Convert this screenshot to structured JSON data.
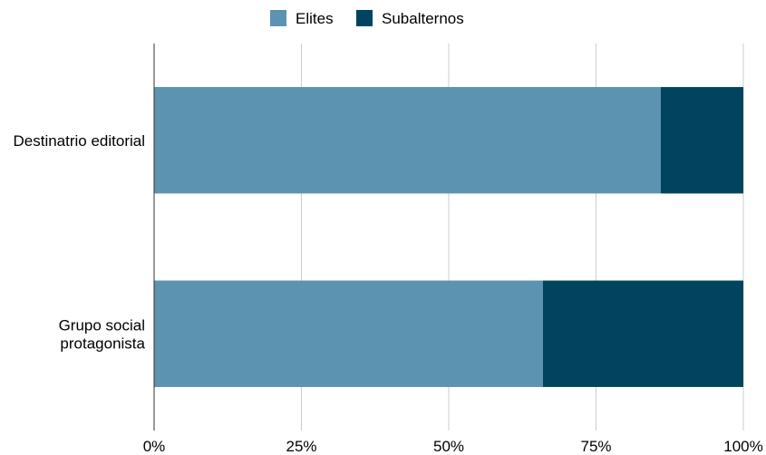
{
  "chart_data": {
    "type": "bar",
    "orientation": "horizontal",
    "stacked": "percent",
    "categories": [
      [
        "Destinatrio editorial"
      ],
      [
        "Grupo social",
        "protagonista"
      ]
    ],
    "series": [
      {
        "name": "Elites",
        "values": [
          86,
          66
        ],
        "color": "#5b93b0"
      },
      {
        "name": "Subalternos",
        "values": [
          14,
          34
        ],
        "color": "#02445f"
      }
    ],
    "x_ticks": [
      "0%",
      "25%",
      "50%",
      "75%",
      "100%"
    ],
    "xlim": [
      0,
      100
    ],
    "grid": true,
    "legend_position": "top"
  }
}
